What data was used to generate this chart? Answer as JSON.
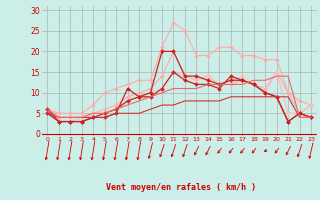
{
  "background_color": "#cceee8",
  "grid_color": "#b0b0b0",
  "xlabel": "Vent moyen/en rafales ( km/h )",
  "xlabel_color": "#cc0000",
  "tick_color": "#cc0000",
  "x_ticks": [
    0,
    1,
    2,
    3,
    4,
    5,
    6,
    7,
    8,
    9,
    10,
    11,
    12,
    13,
    14,
    15,
    16,
    17,
    18,
    19,
    20,
    21,
    22,
    23
  ],
  "ylim": [
    -0.5,
    31
  ],
  "xlim": [
    -0.5,
    23.5
  ],
  "yticks": [
    0,
    5,
    10,
    15,
    20,
    25,
    30
  ],
  "series": [
    {
      "color": "#ffaaaa",
      "linewidth": 0.8,
      "marker": "D",
      "markersize": 2.0,
      "data": [
        6,
        5,
        5,
        5,
        7,
        10,
        11,
        12,
        13,
        13,
        21,
        27,
        25,
        19,
        19,
        21,
        21,
        19,
        19,
        18,
        18,
        10,
        8,
        7
      ]
    },
    {
      "color": "#ffaaaa",
      "linewidth": 0.8,
      "marker": "D",
      "markersize": 2.0,
      "data": [
        6,
        4,
        4,
        4,
        5,
        6,
        7,
        9,
        10,
        11,
        14,
        20,
        14,
        13,
        14,
        12,
        12,
        13,
        12,
        11,
        15,
        10,
        5,
        7
      ]
    },
    {
      "color": "#ffbbbb",
      "linewidth": 0.8,
      "marker": "D",
      "markersize": 2.0,
      "data": [
        6,
        3,
        3,
        4,
        5,
        5,
        6,
        8,
        9,
        10,
        11,
        15,
        14,
        13,
        14,
        12,
        13,
        14,
        12,
        10,
        15,
        5,
        5,
        7
      ]
    },
    {
      "color": "#cc2222",
      "linewidth": 0.9,
      "marker": "D",
      "markersize": 2.0,
      "data": [
        6,
        3,
        3,
        3,
        4,
        5,
        6,
        8,
        9,
        10,
        20,
        20,
        14,
        14,
        13,
        12,
        13,
        13,
        12,
        10,
        9,
        3,
        5,
        4
      ]
    },
    {
      "color": "#cc2222",
      "linewidth": 0.9,
      "marker": "D",
      "markersize": 2.0,
      "data": [
        5,
        3,
        3,
        3,
        4,
        4,
        5,
        11,
        9,
        9,
        11,
        15,
        13,
        12,
        12,
        11,
        14,
        13,
        12,
        10,
        9,
        3,
        5,
        4
      ]
    },
    {
      "color": "#cc3333",
      "linewidth": 0.8,
      "marker": null,
      "data": [
        5,
        4,
        4,
        4,
        4,
        4,
        5,
        5,
        5,
        6,
        7,
        7,
        8,
        8,
        8,
        8,
        9,
        9,
        9,
        9,
        9,
        9,
        4,
        4
      ]
    },
    {
      "color": "#ee6666",
      "linewidth": 0.8,
      "marker": null,
      "data": [
        6,
        4,
        4,
        4,
        5,
        5,
        6,
        7,
        8,
        9,
        10,
        11,
        11,
        11,
        12,
        12,
        12,
        12,
        13,
        13,
        14,
        14,
        4,
        4
      ]
    }
  ],
  "arrow_color": "#cc0000",
  "arrow_angles": [
    210,
    210,
    210,
    210,
    210,
    210,
    210,
    210,
    210,
    220,
    230,
    230,
    230,
    240,
    240,
    250,
    250,
    250,
    250,
    260,
    250,
    240,
    230,
    220
  ]
}
